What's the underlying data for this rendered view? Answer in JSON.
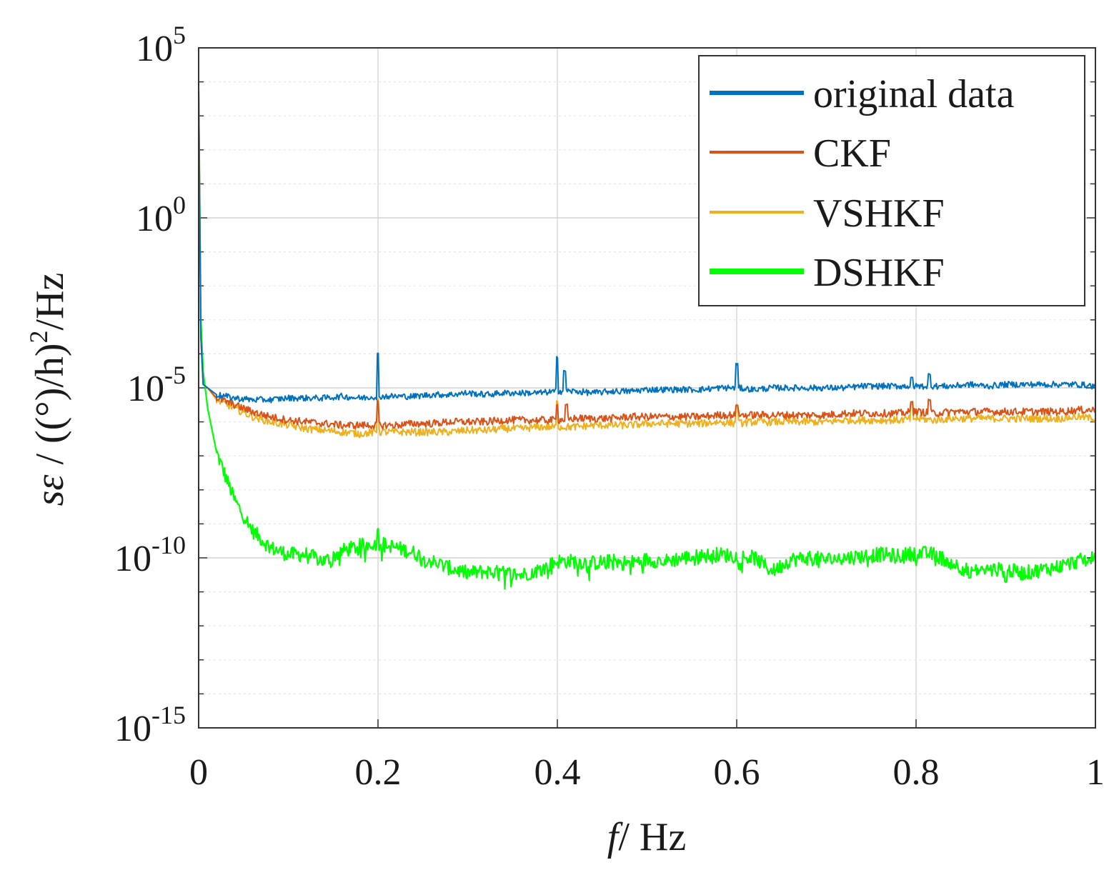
{
  "chart_data": {
    "type": "line",
    "title": "",
    "xlabel_italic": "f",
    "xlabel_rest": "/ Hz",
    "ylabel_italic": "sε",
    "ylabel_rest": " / ((°)/h)",
    "ylabel_sup": "2",
    "ylabel_tail": "/Hz",
    "xlim": [
      0,
      1
    ],
    "ylim": [
      1e-15,
      100000.0
    ],
    "yscale": "log",
    "grid": true,
    "legend_position": "top-right",
    "x_ticks": [
      {
        "value": 0,
        "label": "0"
      },
      {
        "value": 0.2,
        "label": "0.2"
      },
      {
        "value": 0.4,
        "label": "0.4"
      },
      {
        "value": 0.6,
        "label": "0.6"
      },
      {
        "value": 0.8,
        "label": "0.8"
      },
      {
        "value": 1,
        "label": "1"
      }
    ],
    "y_ticks": [
      {
        "exp": -15,
        "base": "10",
        "sup": "-15"
      },
      {
        "exp": -10,
        "base": "10",
        "sup": "-10"
      },
      {
        "exp": -5,
        "base": "10",
        "sup": "-5"
      },
      {
        "exp": 0,
        "base": "10",
        "sup": "0"
      },
      {
        "exp": 5,
        "base": "10",
        "sup": "5"
      }
    ],
    "x": [
      0,
      0.0025,
      0.005,
      0.01,
      0.02,
      0.04,
      0.06,
      0.08,
      0.1,
      0.12,
      0.14,
      0.16,
      0.18,
      0.2,
      0.22,
      0.24,
      0.26,
      0.28,
      0.3,
      0.32,
      0.34,
      0.36,
      0.38,
      0.4,
      0.42,
      0.44,
      0.46,
      0.48,
      0.5,
      0.52,
      0.54,
      0.56,
      0.58,
      0.6,
      0.62,
      0.64,
      0.66,
      0.68,
      0.7,
      0.72,
      0.74,
      0.76,
      0.78,
      0.8,
      0.82,
      0.84,
      0.86,
      0.88,
      0.9,
      0.92,
      0.94,
      0.96,
      0.98,
      1.0
    ],
    "series": [
      {
        "name": "original data",
        "color": "#0072BD",
        "log10_values": [
          3.8,
          -3.5,
          -4.9,
          -5.0,
          -5.2,
          -5.3,
          -5.35,
          -5.35,
          -5.3,
          -5.3,
          -5.3,
          -5.25,
          -5.3,
          -5.25,
          -5.25,
          -5.25,
          -5.2,
          -5.2,
          -5.15,
          -5.2,
          -5.15,
          -5.15,
          -5.15,
          -5.1,
          -5.1,
          -5.15,
          -5.1,
          -5.1,
          -5.05,
          -5.05,
          -5.05,
          -5.05,
          -5.0,
          -5.0,
          -5.05,
          -5.0,
          -5.0,
          -5.0,
          -5.0,
          -5.0,
          -4.95,
          -4.95,
          -4.95,
          -4.95,
          -4.95,
          -4.95,
          -4.9,
          -4.95,
          -4.9,
          -4.9,
          -4.9,
          -4.9,
          -4.9,
          -4.95
        ],
        "spikes": [
          {
            "x": 0.2,
            "log10": -4.0
          },
          {
            "x": 0.4,
            "log10": -4.1
          },
          {
            "x": 0.408,
            "log10": -4.5
          },
          {
            "x": 0.6,
            "log10": -4.3
          },
          {
            "x": 0.795,
            "log10": -4.7
          },
          {
            "x": 0.815,
            "log10": -4.6
          }
        ]
      },
      {
        "name": "CKF",
        "color": "#D95319",
        "log10_values": [
          3.8,
          -3.5,
          -4.9,
          -5.0,
          -5.3,
          -5.5,
          -5.7,
          -5.85,
          -5.95,
          -6.0,
          -6.05,
          -6.1,
          -6.1,
          -6.1,
          -6.1,
          -6.05,
          -6.05,
          -6.0,
          -6.0,
          -6.0,
          -5.95,
          -5.95,
          -5.95,
          -5.95,
          -5.9,
          -5.9,
          -5.9,
          -5.85,
          -5.85,
          -5.85,
          -5.85,
          -5.85,
          -5.8,
          -5.8,
          -5.8,
          -5.8,
          -5.8,
          -5.8,
          -5.8,
          -5.75,
          -5.75,
          -5.75,
          -5.75,
          -5.7,
          -5.75,
          -5.7,
          -5.7,
          -5.7,
          -5.7,
          -5.7,
          -5.7,
          -5.7,
          -5.65,
          -5.65
        ],
        "spikes": [
          {
            "x": 0.2,
            "log10": -5.4
          },
          {
            "x": 0.4,
            "log10": -5.5
          },
          {
            "x": 0.41,
            "log10": -5.5
          },
          {
            "x": 0.6,
            "log10": -5.5
          },
          {
            "x": 0.795,
            "log10": -5.4
          },
          {
            "x": 0.815,
            "log10": -5.35
          }
        ]
      },
      {
        "name": "VSHKF",
        "color": "#EDB120",
        "log10_values": [
          3.8,
          -3.5,
          -4.9,
          -5.0,
          -5.35,
          -5.6,
          -5.85,
          -6.0,
          -6.1,
          -6.2,
          -6.25,
          -6.3,
          -6.35,
          -6.3,
          -6.3,
          -6.3,
          -6.3,
          -6.3,
          -6.25,
          -6.25,
          -6.2,
          -6.2,
          -6.15,
          -6.15,
          -6.15,
          -6.1,
          -6.1,
          -6.1,
          -6.05,
          -6.05,
          -6.05,
          -6.05,
          -6.0,
          -6.05,
          -6.0,
          -6.0,
          -6.0,
          -6.0,
          -6.0,
          -5.95,
          -5.95,
          -5.95,
          -5.95,
          -5.9,
          -5.95,
          -5.9,
          -5.9,
          -5.9,
          -5.9,
          -5.9,
          -5.9,
          -5.9,
          -5.85,
          -5.9
        ],
        "spikes": [
          {
            "x": 0.2,
            "log10": -5.3
          },
          {
            "x": 0.4,
            "log10": -5.4
          },
          {
            "x": 0.6,
            "log10": -5.5
          },
          {
            "x": 0.795,
            "log10": -5.5
          }
        ]
      },
      {
        "name": "DSHKF",
        "color": "#00FF00",
        "log10_values": [
          3.8,
          -3.0,
          -4.5,
          -5.6,
          -6.9,
          -8.3,
          -9.2,
          -9.7,
          -9.9,
          -9.9,
          -10.1,
          -9.8,
          -9.65,
          -9.55,
          -9.7,
          -9.85,
          -10.1,
          -10.3,
          -10.45,
          -10.4,
          -10.45,
          -10.5,
          -10.35,
          -10.1,
          -10.1,
          -10.15,
          -10.1,
          -10.15,
          -10.05,
          -10.1,
          -10.0,
          -9.95,
          -9.9,
          -9.95,
          -10.0,
          -10.4,
          -10.05,
          -10.0,
          -10.05,
          -10.0,
          -9.95,
          -9.9,
          -9.95,
          -9.85,
          -9.9,
          -10.15,
          -10.4,
          -10.35,
          -10.35,
          -10.45,
          -10.35,
          -10.25,
          -10.1,
          -10.0
        ],
        "spikes": [
          {
            "x": 0.2,
            "log10": -9.15
          },
          {
            "x": 0.148,
            "log10": -10.25
          },
          {
            "x": 0.37,
            "log10": -10.6
          },
          {
            "x": 0.64,
            "log10": -10.45
          },
          {
            "x": 0.86,
            "log10": -10.6
          },
          {
            "x": 0.9,
            "log10": -10.7
          }
        ]
      }
    ]
  }
}
